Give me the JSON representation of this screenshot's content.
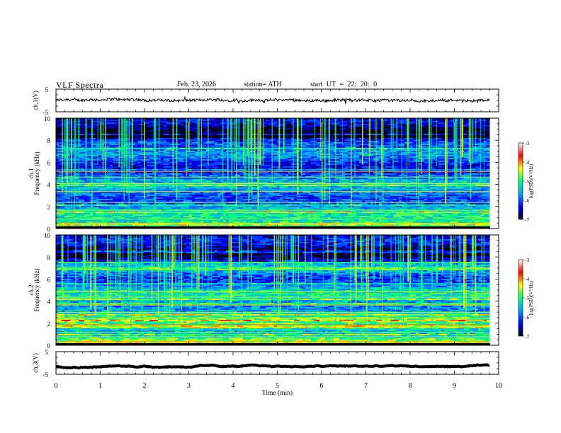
{
  "header": {
    "title": "VLF  Spectra",
    "date": "Feb. 23, 2026",
    "station": "station= ATH",
    "start_ut": "start  UT  =   22: 20: 0"
  },
  "chart_data": [
    {
      "type": "line",
      "name": "ch1-waveform",
      "ylabel": "ch.1(V)",
      "ylim": [
        -5,
        5
      ],
      "y_ticks": [
        "5",
        "-5"
      ],
      "x_range_min": [
        0,
        10
      ],
      "data_end_min": 9.8,
      "baseline_v": 0.1
    },
    {
      "type": "heatmap",
      "name": "ch1-spectrogram",
      "ylabel_top": "ch.1",
      "ylabel": "Frequency  (kHz)",
      "ylim_khz": [
        0,
        10
      ],
      "y_ticks": [
        "0",
        "2",
        "4",
        "6",
        "8",
        "10"
      ],
      "colorbar": {
        "label": "log(PSD)(V²/Hz)",
        "range": [
          -7,
          -3
        ],
        "ticks": [
          "-3",
          "-4",
          "-5",
          "-6",
          "-7"
        ]
      }
    },
    {
      "type": "heatmap",
      "name": "ch2-spectrogram",
      "ylabel_top": "ch.2",
      "ylabel": "Frequency  (kHz)",
      "ylim_khz": [
        0,
        10
      ],
      "y_ticks": [
        "0",
        "2",
        "4",
        "6",
        "8",
        "10"
      ],
      "colorbar": {
        "label": "log(PSD)(V²/Hz)",
        "range": [
          -7,
          -3
        ],
        "ticks": [
          "-3",
          "-4",
          "-5",
          "-6",
          "-7"
        ]
      }
    },
    {
      "type": "line",
      "name": "ch3-waveform",
      "ylabel": "ch.3(V)",
      "ylim": [
        -5,
        5
      ],
      "y_ticks": [
        "5",
        "-5"
      ],
      "x_range_min": [
        0,
        10
      ],
      "data_end_min": 9.8,
      "baseline_v": -1.5
    }
  ],
  "x_axis": {
    "label": "Time  (min)",
    "ticks": [
      "0",
      "1",
      "2",
      "3",
      "4",
      "5",
      "6",
      "7",
      "8",
      "9",
      "10"
    ],
    "range": [
      0,
      10
    ]
  },
  "colors": {
    "scale": [
      "#000000",
      "#0000ff",
      "#00a0ff",
      "#00ff80",
      "#ffff00",
      "#ff0000",
      "#ffffff"
    ]
  }
}
